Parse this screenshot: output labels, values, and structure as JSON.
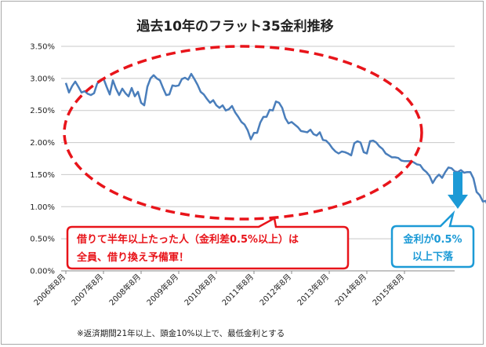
{
  "chart_data": {
    "type": "line",
    "title": "過去10年のフラット35金利推移",
    "xlabel": "",
    "ylabel": "",
    "ylim": [
      0,
      0.035
    ],
    "y_ticks": [
      "3.50%",
      "3.00%",
      "2.50%",
      "2.00%",
      "1.50%",
      "1.00%",
      "0.50%",
      "0.00%"
    ],
    "x_tick_labels": [
      "2006年8月",
      "2007年8月",
      "2008年8月",
      "2009年8月",
      "2010年8月",
      "2011年8月",
      "2012年8月",
      "2013年8月",
      "2014年8月",
      "2015年8月"
    ],
    "grid": "horizontal",
    "legend": "none",
    "series": [
      {
        "color": "#4a7ebb",
        "start": "2006-08",
        "frequency": "monthly",
        "values": [
          0.0293,
          0.0278,
          0.0288,
          0.0295,
          0.0287,
          0.0278,
          0.028,
          0.0276,
          0.0274,
          0.0277,
          0.0292,
          0.0296,
          0.03,
          0.0287,
          0.0275,
          0.0297,
          0.0284,
          0.0274,
          0.0284,
          0.0277,
          0.0272,
          0.0285,
          0.0272,
          0.0279,
          0.0262,
          0.0258,
          0.0287,
          0.03,
          0.0305,
          0.03,
          0.0297,
          0.0285,
          0.0274,
          0.0275,
          0.0289,
          0.0288,
          0.0289,
          0.0299,
          0.0301,
          0.0298,
          0.0307,
          0.0299,
          0.029,
          0.0279,
          0.0275,
          0.0268,
          0.0262,
          0.0266,
          0.0258,
          0.0254,
          0.0258,
          0.025,
          0.0252,
          0.0257,
          0.0247,
          0.024,
          0.0232,
          0.0228,
          0.0219,
          0.0205,
          0.0215,
          0.0215,
          0.0231,
          0.024,
          0.024,
          0.0251,
          0.025,
          0.0264,
          0.0262,
          0.0254,
          0.0238,
          0.023,
          0.0232,
          0.0228,
          0.0224,
          0.0218,
          0.0217,
          0.0216,
          0.022,
          0.0213,
          0.0211,
          0.0216,
          0.0204,
          0.0203,
          0.0198,
          0.0191,
          0.0186,
          0.0183,
          0.0186,
          0.0185,
          0.0183,
          0.018,
          0.0199,
          0.0202,
          0.02,
          0.0185,
          0.0183,
          0.0202,
          0.0203,
          0.02,
          0.0194,
          0.019,
          0.0183,
          0.018,
          0.0177,
          0.0177,
          0.0176,
          0.0172,
          0.0171,
          0.0171,
          0.0171,
          0.0169,
          0.0166,
          0.0165,
          0.0158,
          0.0154,
          0.0148,
          0.0137,
          0.0145,
          0.015,
          0.0145,
          0.0154,
          0.0161,
          0.016,
          0.0155,
          0.0154,
          0.0157,
          0.0153,
          0.0154,
          0.0154,
          0.0144,
          0.0123,
          0.0118,
          0.0108,
          0.0109,
          0.0093
        ]
      }
    ]
  },
  "annotations": {
    "red_callout": [
      "借りて半年以上たった人（金利差0.5%以上）は",
      "全員、借り換え予備軍！"
    ],
    "blue_callout": [
      "金利が0.5%",
      "以上下落"
    ],
    "footnote": "※返済期間21年以上、頭金10%以上で、最低金利とする"
  },
  "colors": {
    "line": "#4a7ebb",
    "red": "#e8141a",
    "blue": "#1c9ad6",
    "grid": "#c8c8c8"
  }
}
